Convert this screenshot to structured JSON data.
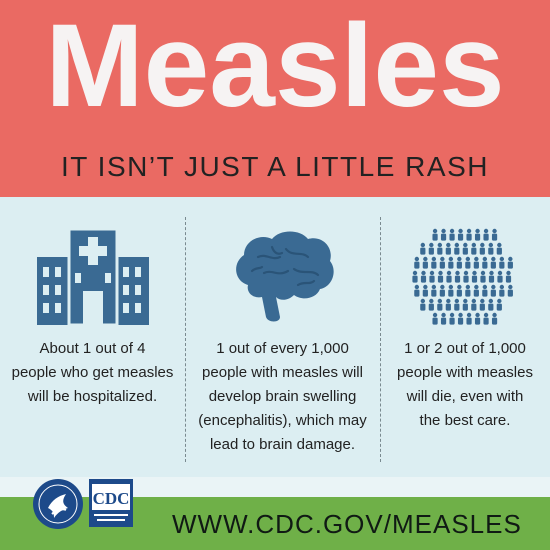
{
  "header": {
    "title": "Measles",
    "subtitle": "IT ISN’T JUST A LITTLE RASH"
  },
  "columns": [
    {
      "icon": "hospital-icon",
      "lines": [
        "About 1 out of 4",
        "people who get measles",
        "will be hospitalized."
      ]
    },
    {
      "icon": "brain-icon",
      "lines": [
        "1 out of every 1,000",
        "people with measles will",
        "develop brain swelling",
        "(encephalitis), which may",
        "lead to brain damage."
      ]
    },
    {
      "icon": "people-circle-icon",
      "lines": [
        "1 or 2 out of 1,000",
        "people with measles",
        "will die, even with",
        "the best care."
      ]
    }
  ],
  "footer": {
    "url": "WWW.CDC.GOV/MEASLES",
    "cdc_logo_text": "CDC"
  },
  "colors": {
    "header_bg": "#ea6a63",
    "panel_bg": "#dceef2",
    "icon_blue": "#3a6a93",
    "footer_green": "#6fb048",
    "logo_blue": "#1d4a8a"
  }
}
